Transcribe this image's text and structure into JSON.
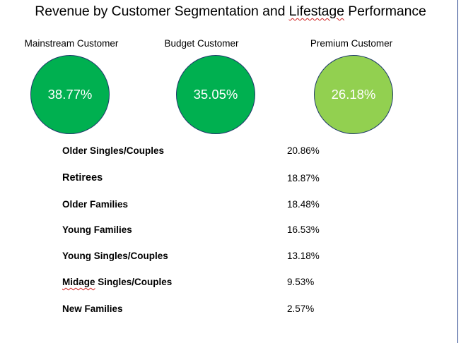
{
  "title": {
    "text_before": "Revenue by Customer Segmentation and ",
    "text_marked": "Lifestage",
    "text_after": " Performance"
  },
  "segments": [
    {
      "label": "Mainstream Customer",
      "value": "38.77%",
      "color": "#00b050"
    },
    {
      "label": "Budget Customer",
      "value": "35.05%",
      "color": "#00b050"
    },
    {
      "label": "Premium Customer",
      "value": "26.18%",
      "color": "#92d050"
    }
  ],
  "lifestages": [
    {
      "label": "Older Singles/Couples",
      "value": "20.86%"
    },
    {
      "label": "Retirees",
      "value": "18.87%"
    },
    {
      "label": "Older Families",
      "value": "18.48%"
    },
    {
      "label": "Young Families",
      "value": "16.53%"
    },
    {
      "label": "Young Singles/Couples",
      "value": "13.18%"
    },
    {
      "label_marked": "Midage",
      "label_rest": " Singles/Couples",
      "value": "9.53%"
    },
    {
      "label": "New Families",
      "value": "2.57%"
    }
  ]
}
